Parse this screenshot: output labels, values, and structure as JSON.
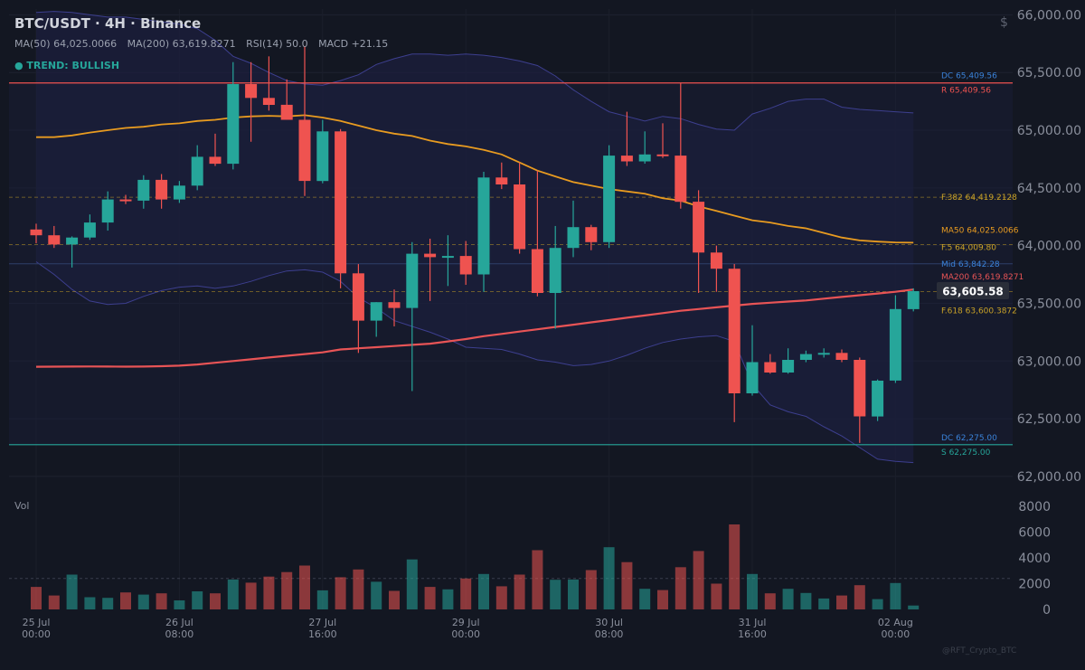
{
  "header": {
    "title": "BTC/USDT · 4H · Binance",
    "indicators": [
      "MA(50) 64,025.0066",
      "MA(200) 63,619.8271",
      "RSI(14) 50.0",
      "MACD +21.15"
    ],
    "trend": "● TREND: BULLISH",
    "currency": "$"
  },
  "volume_label": "Vol",
  "watermark": "@RFT_Crypto_BTC",
  "colors": {
    "background": "#131722",
    "up": "#26a69a",
    "down": "#ef5350",
    "ma50": "#e89b20",
    "ma200": "#e85456",
    "bollinger": "#3d3f8f",
    "resistance": "#ef5350",
    "support": "#26a69a",
    "fib": "#c9a227",
    "mid": "#2f3f6a",
    "dc_label": "#3a82d9"
  },
  "chart_data": [
    {
      "type": "candlestick",
      "y_ticks": [
        62000,
        62500,
        63000,
        63500,
        64000,
        64500,
        65000,
        65500,
        66000
      ],
      "y_tick_labels": [
        "62,000.00",
        "62,500.00",
        "63,000.00",
        "63,500.00",
        "64,000.00",
        "64,500.00",
        "65,000.00",
        "65,500.00",
        "66,000.00"
      ],
      "ylim": [
        61960,
        66050
      ],
      "x_tick_labels": [
        {
          "index": 0,
          "line1": "25 Jul",
          "line2": "00:00"
        },
        {
          "index": 8,
          "line1": "26 Jul",
          "line2": "08:00"
        },
        {
          "index": 16,
          "line1": "27 Jul",
          "line2": "16:00"
        },
        {
          "index": 24,
          "line1": "29 Jul",
          "line2": "00:00"
        },
        {
          "index": 32,
          "line1": "30 Jul",
          "line2": "08:00"
        },
        {
          "index": 40,
          "line1": "31 Jul",
          "line2": "16:00"
        },
        {
          "index": 48,
          "line1": "02 Aug",
          "line2": "00:00"
        }
      ],
      "candles": [
        {
          "o": 64140,
          "h": 64190,
          "l": 64020,
          "c": 64090
        },
        {
          "o": 64090,
          "h": 64170,
          "l": 63980,
          "c": 64010
        },
        {
          "o": 64010,
          "h": 64080,
          "l": 63810,
          "c": 64070
        },
        {
          "o": 64070,
          "h": 64270,
          "l": 64050,
          "c": 64200
        },
        {
          "o": 64200,
          "h": 64470,
          "l": 64130,
          "c": 64400
        },
        {
          "o": 64400,
          "h": 64440,
          "l": 64360,
          "c": 64390
        },
        {
          "o": 64390,
          "h": 64610,
          "l": 64320,
          "c": 64570
        },
        {
          "o": 64570,
          "h": 64620,
          "l": 64320,
          "c": 64400
        },
        {
          "o": 64400,
          "h": 64560,
          "l": 64370,
          "c": 64520
        },
        {
          "o": 64520,
          "h": 64870,
          "l": 64480,
          "c": 64770
        },
        {
          "o": 64770,
          "h": 64970,
          "l": 64690,
          "c": 64710
        },
        {
          "o": 64710,
          "h": 65590,
          "l": 64660,
          "c": 65400
        },
        {
          "o": 65400,
          "h": 65590,
          "l": 64900,
          "c": 65280
        },
        {
          "o": 65280,
          "h": 65640,
          "l": 65170,
          "c": 65220
        },
        {
          "o": 65220,
          "h": 65440,
          "l": 65090,
          "c": 65090
        },
        {
          "o": 65090,
          "h": 65730,
          "l": 64430,
          "c": 64560
        },
        {
          "o": 64560,
          "h": 65090,
          "l": 64540,
          "c": 64990
        },
        {
          "o": 64990,
          "h": 65010,
          "l": 63630,
          "c": 63760
        },
        {
          "o": 63760,
          "h": 63840,
          "l": 63070,
          "c": 63350
        },
        {
          "o": 63350,
          "h": 63510,
          "l": 63210,
          "c": 63510
        },
        {
          "o": 63510,
          "h": 63620,
          "l": 63300,
          "c": 63460
        },
        {
          "o": 63460,
          "h": 64030,
          "l": 62740,
          "c": 63930
        },
        {
          "o": 63930,
          "h": 64060,
          "l": 63520,
          "c": 63900
        },
        {
          "o": 63900,
          "h": 64090,
          "l": 63650,
          "c": 63910
        },
        {
          "o": 63910,
          "h": 64040,
          "l": 63660,
          "c": 63750
        },
        {
          "o": 63750,
          "h": 64640,
          "l": 63600,
          "c": 64590
        },
        {
          "o": 64590,
          "h": 64720,
          "l": 64490,
          "c": 64530
        },
        {
          "o": 64530,
          "h": 64720,
          "l": 63930,
          "c": 63970
        },
        {
          "o": 63970,
          "h": 64650,
          "l": 63560,
          "c": 63590
        },
        {
          "o": 63590,
          "h": 64170,
          "l": 63280,
          "c": 63980
        },
        {
          "o": 63980,
          "h": 64390,
          "l": 63900,
          "c": 64160
        },
        {
          "o": 64160,
          "h": 64180,
          "l": 63960,
          "c": 64030
        },
        {
          "o": 64030,
          "h": 64870,
          "l": 63980,
          "c": 64780
        },
        {
          "o": 64780,
          "h": 65160,
          "l": 64690,
          "c": 64730
        },
        {
          "o": 64730,
          "h": 64990,
          "l": 64710,
          "c": 64790
        },
        {
          "o": 64790,
          "h": 65060,
          "l": 64760,
          "c": 64780
        },
        {
          "o": 64780,
          "h": 65410,
          "l": 64320,
          "c": 64380
        },
        {
          "o": 64380,
          "h": 64480,
          "l": 63590,
          "c": 63940
        },
        {
          "o": 63940,
          "h": 64000,
          "l": 63600,
          "c": 63800
        },
        {
          "o": 63800,
          "h": 63840,
          "l": 62470,
          "c": 62720
        },
        {
          "o": 62720,
          "h": 63310,
          "l": 62700,
          "c": 62990
        },
        {
          "o": 62990,
          "h": 63060,
          "l": 62890,
          "c": 62900
        },
        {
          "o": 62900,
          "h": 63110,
          "l": 62890,
          "c": 63010
        },
        {
          "o": 63010,
          "h": 63090,
          "l": 62990,
          "c": 63060
        },
        {
          "o": 63060,
          "h": 63110,
          "l": 63030,
          "c": 63070
        },
        {
          "o": 63070,
          "h": 63100,
          "l": 62990,
          "c": 63010
        },
        {
          "o": 63010,
          "h": 63030,
          "l": 62290,
          "c": 62520
        },
        {
          "o": 62520,
          "h": 62840,
          "l": 62480,
          "c": 62830
        },
        {
          "o": 62830,
          "h": 63570,
          "l": 62810,
          "c": 63450
        },
        {
          "o": 63450,
          "h": 63630,
          "l": 63430,
          "c": 63605.58
        }
      ],
      "ma50": [
        64940,
        64940,
        64955,
        64980,
        65000,
        65020,
        65030,
        65050,
        65060,
        65080,
        65090,
        65110,
        65120,
        65125,
        65120,
        65130,
        65110,
        65080,
        65040,
        65000,
        64970,
        64950,
        64910,
        64880,
        64860,
        64830,
        64790,
        64720,
        64650,
        64600,
        64550,
        64520,
        64490,
        64470,
        64450,
        64410,
        64390,
        64340,
        64300,
        64260,
        64220,
        64200,
        64170,
        64150,
        64110,
        64070,
        64045,
        64035,
        64028,
        64025
      ],
      "ma200": [
        62950,
        62951,
        62952,
        62953,
        62952,
        62951,
        62952,
        62955,
        62960,
        62970,
        62985,
        63000,
        63015,
        63030,
        63045,
        63060,
        63075,
        63100,
        63110,
        63120,
        63130,
        63140,
        63150,
        63170,
        63190,
        63215,
        63235,
        63255,
        63275,
        63295,
        63315,
        63335,
        63355,
        63375,
        63395,
        63415,
        63435,
        63450,
        63465,
        63480,
        63495,
        63505,
        63515,
        63525,
        63540,
        63555,
        63570,
        63585,
        63600,
        63619.83
      ],
      "bb_upper": [
        66020,
        66030,
        66020,
        66000,
        65980,
        65980,
        65960,
        65940,
        65920,
        65880,
        65780,
        65640,
        65580,
        65500,
        65430,
        65400,
        65390,
        65430,
        65480,
        65570,
        65620,
        65660,
        65660,
        65650,
        65660,
        65650,
        65630,
        65600,
        65560,
        65470,
        65350,
        65250,
        65160,
        65120,
        65080,
        65120,
        65100,
        65050,
        65010,
        65000,
        65140,
        65190,
        65250,
        65270,
        65270,
        65200,
        65180,
        65170,
        65160,
        65150
      ],
      "bb_lower": [
        63860,
        63750,
        63620,
        63520,
        63490,
        63500,
        63560,
        63610,
        63640,
        63650,
        63630,
        63650,
        63690,
        63740,
        63780,
        63790,
        63770,
        63690,
        63550,
        63460,
        63350,
        63300,
        63250,
        63190,
        63120,
        63110,
        63100,
        63060,
        63010,
        62990,
        62960,
        62970,
        63000,
        63050,
        63110,
        63160,
        63190,
        63210,
        63220,
        63170,
        62800,
        62620,
        62560,
        62520,
        62430,
        62350,
        62250,
        62150,
        62130,
        62120
      ],
      "bands_start_index": 0,
      "levels": [
        {
          "kind": "resistance",
          "value": 65409.56,
          "labels": [
            "DC 65,409.56",
            "R 65,409.56"
          ]
        },
        {
          "kind": "fib",
          "value": 64419.2128,
          "labels": [
            "F.382 64,419.2128"
          ]
        },
        {
          "kind": "ma50",
          "value": 64025.0066,
          "labels": [
            "MA50 64,025.0066"
          ]
        },
        {
          "kind": "fib",
          "value": 64009.8,
          "labels": [
            "F.5 64,009.80"
          ]
        },
        {
          "kind": "mid",
          "value": 63842.28,
          "labels": [
            "Mid 63,842.28"
          ]
        },
        {
          "kind": "ma200",
          "value": 63619.8271,
          "labels": [
            "MA200 63,619.8271"
          ]
        },
        {
          "kind": "fib",
          "value": 63600.3872,
          "labels": [
            "F.618 63,600.3872"
          ]
        },
        {
          "kind": "support",
          "value": 62275.0,
          "labels": [
            "DC 62,275.00",
            "S 62,275.00"
          ]
        }
      ],
      "last_price": 63605.58,
      "last_price_label": "63,605.58",
      "grid": true
    },
    {
      "type": "bar",
      "name": "Vol",
      "values": [
        1750,
        1080,
        2700,
        950,
        900,
        1320,
        1150,
        1250,
        700,
        1400,
        1250,
        2320,
        2080,
        2550,
        2900,
        3400,
        1480,
        2500,
        3100,
        2150,
        1440,
        3880,
        1750,
        1560,
        2400,
        2750,
        1800,
        2700,
        4600,
        2300,
        2320,
        3050,
        4830,
        3670,
        1600,
        1500,
        3280,
        4530,
        2000,
        6600,
        2750,
        1250,
        1600,
        1280,
        850,
        1080,
        1880,
        800,
        2050,
        300
      ],
      "y_ticks": [
        0,
        2000,
        4000,
        6000,
        8000
      ],
      "y_tick_labels": [
        "0",
        "2000",
        "4000",
        "6000",
        "8000"
      ],
      "ylim": [
        0,
        8000
      ],
      "reference_line": 2400
    }
  ]
}
